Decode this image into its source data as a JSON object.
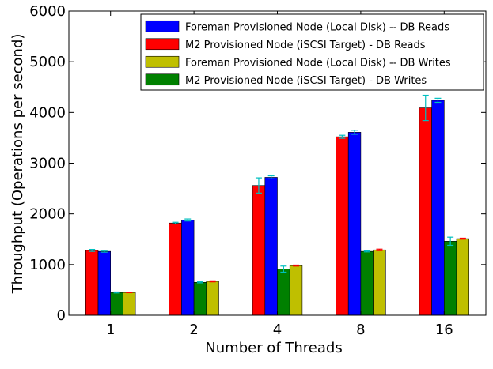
{
  "chart_data": {
    "type": "bar",
    "title": "",
    "xlabel": "Number of Threads",
    "ylabel": "Throughput (Operations per second)",
    "ylim": [
      0,
      6000
    ],
    "yticks": [
      0,
      1000,
      2000,
      3000,
      4000,
      5000,
      6000
    ],
    "categories": [
      "1",
      "2",
      "4",
      "8",
      "16"
    ],
    "legend_position": "top-right",
    "series": [
      {
        "name": "Foreman Provisioned Node (Local Disk) -- DB Reads",
        "color": "#0000ff",
        "error_color": "#00bfbf",
        "values": [
          1260,
          1880,
          2720,
          3610,
          4240
        ],
        "errors": [
          15,
          20,
          30,
          40,
          40
        ]
      },
      {
        "name": "M2 Provisioned Node (iSCSI Target) - DB Reads",
        "color": "#ff0000",
        "error_color": "#00bfbf",
        "values": [
          1280,
          1820,
          2560,
          3520,
          4090
        ],
        "errors": [
          20,
          15,
          150,
          30,
          250
        ]
      },
      {
        "name": "Foreman Provisioned Node (Local Disk) -- DB Writes",
        "color": "#bfbf00",
        "error_color": "#ff0000",
        "values": [
          450,
          670,
          980,
          1290,
          1510
        ],
        "errors": [
          5,
          10,
          10,
          15,
          10
        ]
      },
      {
        "name": "M2 Provisioned Node (iSCSI Target) - DB Writes",
        "color": "#008000",
        "error_color": "#00bfbf",
        "values": [
          450,
          650,
          910,
          1260,
          1460
        ],
        "errors": [
          10,
          10,
          60,
          10,
          80
        ]
      }
    ],
    "legend_order": [
      0,
      1,
      2,
      3
    ],
    "bar_order": [
      1,
      0,
      3,
      2
    ]
  }
}
